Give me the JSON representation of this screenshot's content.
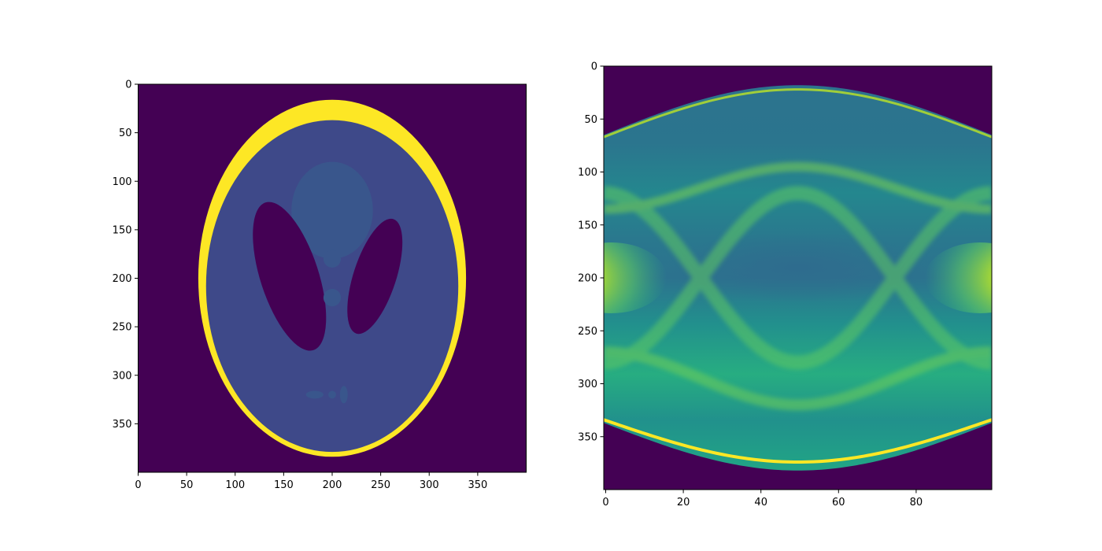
{
  "colors": {
    "viridis_dark": "#440154",
    "viridis_blue": "#3e4989",
    "viridis_teal": "#26828e",
    "viridis_green": "#35b779",
    "viridis_yellow": "#fde725",
    "axis": "#000000",
    "background": "#ffffff"
  },
  "chart_data": [
    {
      "type": "heatmap",
      "colormap": "viridis",
      "grid": false,
      "xlim": [
        0,
        400
      ],
      "ylim": [
        400,
        0
      ],
      "xticks": [
        0,
        50,
        100,
        150,
        200,
        250,
        300,
        350
      ],
      "yticks": [
        0,
        50,
        100,
        150,
        200,
        250,
        300,
        350
      ],
      "xlabel": "",
      "ylabel": "",
      "title": "",
      "ellipses": [
        {
          "cx": 200,
          "cy": 200,
          "rx": 138,
          "ry": 184,
          "angle": 0,
          "color": "#fde725"
        },
        {
          "cx": 200,
          "cy": 208,
          "rx": 130,
          "ry": 171,
          "angle": 0,
          "color": "#3e4989"
        },
        {
          "cx": 200,
          "cy": 130,
          "rx": 42,
          "ry": 50,
          "angle": 0,
          "color": "#39568c"
        },
        {
          "cx": 156,
          "cy": 198,
          "rx": 30,
          "ry": 80,
          "angle": -18,
          "color": "#440154"
        },
        {
          "cx": 244,
          "cy": 198,
          "rx": 22,
          "ry": 62,
          "angle": 18,
          "color": "#440154"
        },
        {
          "cx": 200,
          "cy": 180,
          "rx": 9,
          "ry": 9,
          "angle": 0,
          "color": "#39568c"
        },
        {
          "cx": 200,
          "cy": 220,
          "rx": 9,
          "ry": 9,
          "angle": 0,
          "color": "#39568c"
        },
        {
          "cx": 182,
          "cy": 320,
          "rx": 9,
          "ry": 4,
          "angle": 0,
          "color": "#39568c"
        },
        {
          "cx": 200,
          "cy": 320,
          "rx": 4,
          "ry": 4,
          "angle": 0,
          "color": "#39568c"
        },
        {
          "cx": 212,
          "cy": 320,
          "rx": 4,
          "ry": 9,
          "angle": 0,
          "color": "#39568c"
        }
      ]
    },
    {
      "type": "heatmap",
      "colormap": "viridis",
      "grid": false,
      "xlim": [
        0,
        100
      ],
      "ylim": [
        400,
        0
      ],
      "xticks": [
        0,
        20,
        40,
        60,
        80
      ],
      "yticks": [
        0,
        50,
        100,
        150,
        200,
        250,
        300,
        350
      ],
      "xlabel": "",
      "ylabel": "",
      "title": "",
      "sinogram": {
        "upper_boundary": [
          [
            0,
            65
          ],
          [
            25,
            38
          ],
          [
            50,
            18
          ],
          [
            75,
            38
          ],
          [
            99,
            65
          ]
        ],
        "lower_boundary": [
          [
            0,
            337
          ],
          [
            25,
            358
          ],
          [
            50,
            382
          ],
          [
            75,
            358
          ],
          [
            99,
            337
          ]
        ],
        "bright_regions": [
          {
            "x": 2,
            "y": 200,
            "value": 0.95
          },
          {
            "x": 97,
            "y": 200,
            "value": 0.95
          }
        ]
      }
    }
  ]
}
